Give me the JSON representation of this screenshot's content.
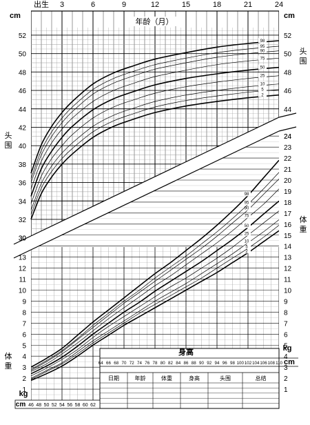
{
  "chart_data": {
    "type": "line",
    "age_axis": {
      "label": "年龄（月）",
      "start_label": "出生",
      "ticks": [
        3,
        6,
        9,
        12,
        15,
        18,
        21,
        24
      ],
      "range": [
        0,
        24
      ]
    },
    "head_circumference": {
      "label": "头围",
      "unit": "cm",
      "y_ticks": [
        30,
        32,
        34,
        36,
        38,
        40,
        42,
        44,
        46,
        48,
        50,
        52
      ],
      "ylim": [
        29,
        53.5
      ],
      "x": [
        0,
        1,
        2,
        3,
        4,
        6,
        8,
        10,
        12,
        15,
        18,
        21,
        24
      ],
      "series": [
        {
          "name": "2",
          "values": [
            32.0,
            34.8,
            36.6,
            38.0,
            39.1,
            40.9,
            42.1,
            42.9,
            43.6,
            44.3,
            44.8,
            45.2,
            45.5
          ]
        },
        {
          "name": "5",
          "values": [
            32.5,
            35.4,
            37.2,
            38.6,
            39.7,
            41.5,
            42.7,
            43.5,
            44.2,
            44.9,
            45.4,
            45.8,
            46.1
          ]
        },
        {
          "name": "10",
          "values": [
            33.0,
            35.9,
            37.8,
            39.2,
            40.3,
            42.1,
            43.3,
            44.1,
            44.8,
            45.5,
            46.0,
            46.4,
            46.7
          ]
        },
        {
          "name": "25",
          "values": [
            33.7,
            36.7,
            38.6,
            40.0,
            41.2,
            43.0,
            44.2,
            45.0,
            45.7,
            46.4,
            46.9,
            47.3,
            47.6
          ]
        },
        {
          "name": "50",
          "values": [
            34.5,
            37.5,
            39.4,
            40.9,
            42.1,
            43.9,
            45.1,
            45.9,
            46.6,
            47.3,
            47.8,
            48.2,
            48.5
          ]
        },
        {
          "name": "75",
          "values": [
            35.3,
            38.3,
            40.3,
            41.8,
            43.0,
            44.8,
            46.0,
            46.8,
            47.5,
            48.2,
            48.8,
            49.2,
            49.5
          ]
        },
        {
          "name": "90",
          "values": [
            36.0,
            39.0,
            41.0,
            42.5,
            43.7,
            45.6,
            46.8,
            47.6,
            48.3,
            49.0,
            49.6,
            50.0,
            50.3
          ]
        },
        {
          "name": "95",
          "values": [
            36.4,
            39.5,
            41.5,
            43.0,
            44.2,
            46.1,
            47.3,
            48.1,
            48.8,
            49.5,
            50.1,
            50.5,
            50.8
          ]
        },
        {
          "name": "98",
          "values": [
            37.0,
            40.1,
            42.1,
            43.6,
            44.8,
            46.7,
            47.9,
            48.7,
            49.4,
            50.1,
            50.7,
            51.1,
            51.4
          ]
        }
      ]
    },
    "weight": {
      "label": "体重",
      "unit": "kg",
      "y_ticks": [
        1,
        2,
        3,
        4,
        5,
        6,
        7,
        8,
        9,
        10,
        11,
        12,
        13,
        14,
        15,
        16,
        17,
        18,
        19,
        20,
        21,
        22,
        23,
        24
      ],
      "x": [
        46,
        50,
        54,
        58,
        62,
        66,
        70,
        74,
        78,
        82,
        86,
        90,
        94,
        98,
        102,
        106,
        110
      ],
      "series": [
        {
          "name": "2",
          "values": [
            1.8,
            2.4,
            3.1,
            4.0,
            5.0,
            5.9,
            6.8,
            7.6,
            8.4,
            9.2,
            10.0,
            10.8,
            11.6,
            12.5,
            13.4,
            14.4,
            15.4
          ]
        },
        {
          "name": "5",
          "values": [
            1.9,
            2.6,
            3.3,
            4.2,
            5.2,
            6.1,
            7.0,
            7.9,
            8.7,
            9.5,
            10.3,
            11.1,
            12.0,
            12.9,
            13.8,
            14.8,
            15.9
          ]
        },
        {
          "name": "10",
          "values": [
            2.0,
            2.7,
            3.4,
            4.4,
            5.4,
            6.3,
            7.2,
            8.1,
            9.0,
            9.8,
            10.6,
            11.5,
            12.4,
            13.3,
            14.3,
            15.3,
            16.4
          ]
        },
        {
          "name": "25",
          "values": [
            2.2,
            2.9,
            3.7,
            4.6,
            5.7,
            6.7,
            7.6,
            8.5,
            9.4,
            10.3,
            11.1,
            12.0,
            12.9,
            13.9,
            15.0,
            16.1,
            17.2
          ]
        },
        {
          "name": "50",
          "values": [
            2.4,
            3.1,
            3.9,
            4.9,
            6.0,
            7.0,
            8.0,
            8.9,
            9.9,
            10.8,
            11.7,
            12.6,
            13.6,
            14.6,
            15.7,
            16.9,
            18.1
          ]
        },
        {
          "name": "75",
          "values": [
            2.6,
            3.3,
            4.2,
            5.2,
            6.3,
            7.4,
            8.4,
            9.4,
            10.4,
            11.3,
            12.3,
            13.3,
            14.3,
            15.4,
            16.6,
            17.8,
            19.2
          ]
        },
        {
          "name": "90",
          "values": [
            2.7,
            3.5,
            4.4,
            5.5,
            6.6,
            7.7,
            8.8,
            9.8,
            10.8,
            11.8,
            12.8,
            13.8,
            14.9,
            16.1,
            17.3,
            18.7,
            20.1
          ]
        },
        {
          "name": "95",
          "values": [
            2.8,
            3.6,
            4.5,
            5.6,
            6.8,
            7.9,
            9.0,
            10.0,
            11.1,
            12.1,
            13.1,
            14.2,
            15.3,
            16.5,
            17.8,
            19.2,
            20.7
          ]
        },
        {
          "name": "98",
          "values": [
            3.0,
            3.8,
            4.7,
            5.9,
            7.1,
            8.2,
            9.3,
            10.4,
            11.5,
            12.5,
            13.6,
            14.7,
            15.9,
            17.2,
            18.6,
            20.2,
            21.8
          ]
        }
      ]
    },
    "length_axis": {
      "label": "身高",
      "unit": "cm",
      "lower_ticks": [
        46,
        48,
        50,
        52,
        54,
        56,
        58,
        60,
        62
      ],
      "upper_ticks": [
        64,
        66,
        68,
        70,
        72,
        74,
        76,
        78,
        80,
        82,
        84,
        86,
        88,
        90,
        92,
        94,
        96,
        98,
        100,
        102,
        104,
        106,
        108,
        110
      ],
      "range": [
        46,
        110
      ]
    },
    "record_table": {
      "headers": [
        "日期",
        "年龄",
        "体重",
        "身高",
        "头围",
        "总结"
      ],
      "rows": 5
    }
  }
}
